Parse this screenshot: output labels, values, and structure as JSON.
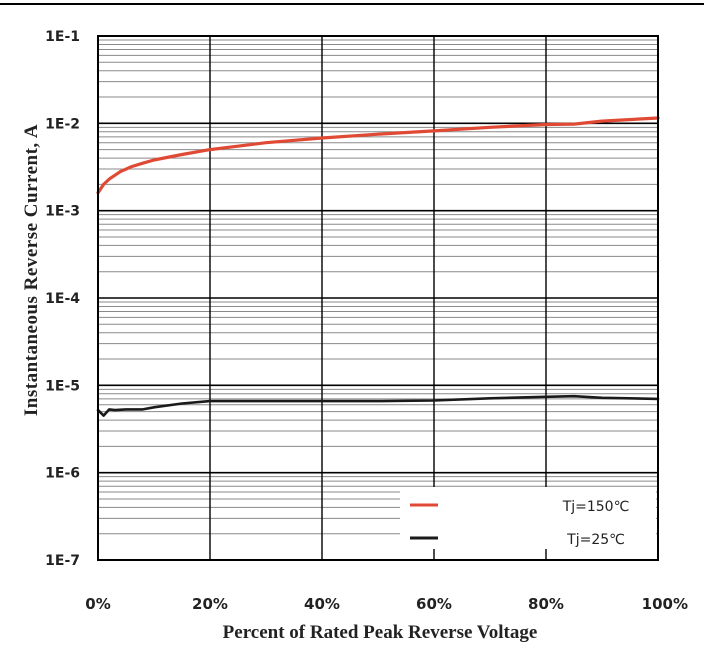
{
  "chart_data": {
    "type": "line",
    "title": "",
    "xlabel": "Percent of Rated Peak Reverse Voltage",
    "ylabel": "Instantaneous Reverse Current, A",
    "x_tick_labels": [
      "0%",
      "20%",
      "40%",
      "60%",
      "80%",
      "100%"
    ],
    "y_tick_labels": [
      "1E-1",
      "1E-2",
      "1E-3",
      "1E-4",
      "1E-5",
      "1E-6",
      "1E-7"
    ],
    "x_ticks": [
      0,
      20,
      40,
      60,
      80,
      100
    ],
    "y_ticks": [
      0.1,
      0.01,
      0.001,
      0.0001,
      1e-05,
      1e-06,
      1e-07
    ],
    "xlim": [
      0,
      100
    ],
    "ylim": [
      1e-07,
      0.1
    ],
    "y_scale": "log",
    "grid": true,
    "legend_position": "bottom-right",
    "series": [
      {
        "name": "Tj=150℃",
        "color": "#e04a34",
        "x": [
          0,
          1,
          2,
          4,
          6,
          8,
          10,
          15,
          20,
          30,
          40,
          50,
          60,
          70,
          80,
          85,
          90,
          100
        ],
        "y": [
          0.0016,
          0.002,
          0.0023,
          0.0028,
          0.0032,
          0.0035,
          0.0038,
          0.0044,
          0.005,
          0.006,
          0.0068,
          0.0075,
          0.0082,
          0.009,
          0.0097,
          0.0098,
          0.0106,
          0.0115
        ]
      },
      {
        "name": "Tj=25℃",
        "color": "#1a1a1a",
        "x": [
          0,
          1,
          2,
          3,
          5,
          8,
          10,
          15,
          20,
          30,
          40,
          50,
          60,
          70,
          80,
          85,
          90,
          100
        ],
        "y": [
          5.2e-06,
          4.5e-06,
          5.3e-06,
          5.2e-06,
          5.3e-06,
          5.3e-06,
          5.6e-06,
          6.2e-06,
          6.6e-06,
          6.6e-06,
          6.6e-06,
          6.6e-06,
          6.7e-06,
          7.1e-06,
          7.4e-06,
          7.5e-06,
          7.2e-06,
          7e-06
        ]
      }
    ]
  }
}
